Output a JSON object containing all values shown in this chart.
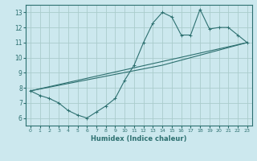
{
  "bg_color": "#cce8ee",
  "grid_color": "#aacccc",
  "line_color": "#2d7070",
  "marker_color": "#2d7070",
  "xlabel": "Humidex (Indice chaleur)",
  "xlim": [
    -0.5,
    23.5
  ],
  "ylim": [
    5.5,
    13.5
  ],
  "xticks": [
    0,
    1,
    2,
    3,
    4,
    5,
    6,
    7,
    8,
    9,
    10,
    11,
    12,
    13,
    14,
    15,
    16,
    17,
    18,
    19,
    20,
    21,
    22,
    23
  ],
  "yticks": [
    6,
    7,
    8,
    9,
    10,
    11,
    12,
    13
  ],
  "series": [
    [
      [
        0,
        7.8
      ],
      [
        1,
        7.5
      ],
      [
        2,
        7.3
      ],
      [
        3,
        7.0
      ],
      [
        4,
        6.5
      ],
      [
        5,
        6.2
      ],
      [
        6,
        6.0
      ],
      [
        7,
        6.4
      ],
      [
        8,
        6.8
      ],
      [
        9,
        7.3
      ],
      [
        10,
        8.5
      ],
      [
        11,
        9.5
      ],
      [
        12,
        11.0
      ],
      [
        13,
        12.3
      ],
      [
        14,
        13.0
      ],
      [
        15,
        12.7
      ],
      [
        16,
        11.5
      ],
      [
        17,
        11.5
      ],
      [
        18,
        13.2
      ],
      [
        19,
        11.9
      ],
      [
        20,
        12.0
      ],
      [
        21,
        12.0
      ],
      [
        22,
        11.5
      ],
      [
        23,
        11.0
      ]
    ],
    [
      [
        0,
        7.8
      ],
      [
        23,
        11.0
      ]
    ],
    [
      [
        0,
        7.8
      ],
      [
        14,
        9.5
      ],
      [
        23,
        11.0
      ]
    ]
  ]
}
